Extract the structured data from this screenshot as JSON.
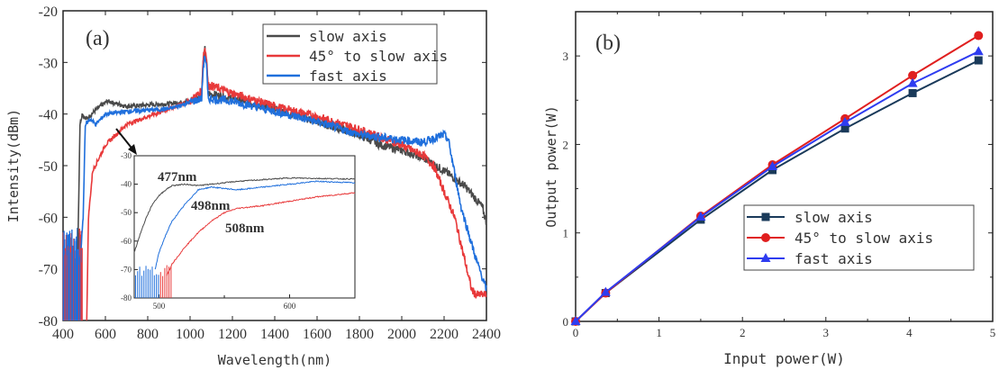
{
  "chart_data": [
    {
      "type": "line",
      "panel_label": "(a)",
      "xlabel": "Wavelength(nm)",
      "ylabel": "Intensity(dBm)",
      "xlim": [
        400,
        2400
      ],
      "ylim": [
        -80,
        -20
      ],
      "xticks": [
        "400",
        "600",
        "800",
        "1000",
        "1200",
        "1400",
        "1600",
        "1800",
        "2000",
        "2200",
        "2400"
      ],
      "yticks": [
        "-80",
        "-70",
        "-60",
        "-50",
        "-40",
        "-30",
        "-20"
      ],
      "legend_position": "top-right",
      "series": [
        {
          "name": "slow axis",
          "color": "#4a4a4a",
          "x": [
            470,
            480,
            490,
            510,
            560,
            610,
            700,
            900,
            1000,
            1055,
            1062,
            1070,
            1078,
            1085,
            1200,
            1400,
            1600,
            1800,
            1900,
            2000,
            2100,
            2200,
            2300,
            2380,
            2400
          ],
          "y": [
            -66,
            -42,
            -40,
            -41,
            -39,
            -37.5,
            -38.5,
            -38,
            -37.5,
            -36,
            -30,
            -27.5,
            -30,
            -36,
            -37,
            -39,
            -41.5,
            -44,
            -46,
            -47,
            -48.5,
            -51,
            -54,
            -58,
            -61
          ]
        },
        {
          "name": "45° to slow axis",
          "color": "#e8393a",
          "x": [
            512,
            520,
            540,
            600,
            700,
            800,
            1000,
            1055,
            1062,
            1070,
            1078,
            1085,
            1100,
            1200,
            1400,
            1600,
            1800,
            2000,
            2100,
            2150,
            2250,
            2330,
            2350,
            2400
          ],
          "y": [
            -80,
            -60,
            -51,
            -46,
            -42,
            -40.5,
            -37.5,
            -35.5,
            -29,
            -27.2,
            -29,
            -34.5,
            -34.5,
            -36,
            -38.5,
            -40.5,
            -43,
            -46,
            -48,
            -50,
            -60,
            -74,
            -75,
            -75
          ]
        },
        {
          "name": "fast axis",
          "color": "#1f6fdc",
          "x": [
            485,
            495,
            505,
            530,
            555,
            600,
            700,
            900,
            1055,
            1062,
            1070,
            1078,
            1085,
            1200,
            1400,
            1600,
            1800,
            2000,
            2100,
            2200,
            2220,
            2280,
            2350,
            2400
          ],
          "y": [
            -66,
            -60,
            -42,
            -41,
            -42,
            -40,
            -39.5,
            -39,
            -37,
            -31,
            -28.5,
            -31,
            -37,
            -37.5,
            -39.5,
            -41.5,
            -44,
            -45,
            -45.5,
            -44,
            -45,
            -58,
            -68,
            -74
          ]
        }
      ],
      "inset": {
        "xlim": [
          481,
          650
        ],
        "ylim": [
          -80,
          -30
        ],
        "xticks": [
          "500",
          "600"
        ],
        "yticks": [
          "-80",
          "-70",
          "-60",
          "-50",
          "-40",
          "-30"
        ],
        "annotations": [
          {
            "text": "477nm",
            "color": "#222222"
          },
          {
            "text": "498nm",
            "color": "#2233cc"
          },
          {
            "text": "508nm",
            "color": "#e8393a"
          }
        ],
        "series": [
          {
            "color": "#4a4a4a",
            "x": [
              481,
              486,
              490,
              495,
              500,
              505,
              510,
              520,
              530,
              540,
              560,
              600,
              650
            ],
            "y": [
              -64,
              -57,
              -52,
              -47,
              -44,
              -42,
              -40.5,
              -40,
              -40.5,
              -40,
              -39,
              -37.8,
              -38.2
            ]
          },
          {
            "color": "#1f6fdc",
            "x": [
              497,
              500,
              505,
              510,
              520,
              530,
              540,
              560,
              580,
              620,
              650
            ],
            "y": [
              -70,
              -64,
              -58,
              -53,
              -47,
              -42,
              -41,
              -42,
              -41,
              -39,
              -39.5
            ]
          },
          {
            "color": "#e8393a",
            "x": [
              506,
              510,
              520,
              530,
              540,
              550,
              560,
              580,
              600,
              620,
              650
            ],
            "y": [
              -72,
              -68,
              -62,
              -57,
              -53,
              -50,
              -48.5,
              -47.5,
              -46,
              -44.5,
              -43
            ]
          }
        ]
      }
    },
    {
      "type": "line",
      "panel_label": "(b)",
      "xlabel": "Input power(W)",
      "ylabel": "Output power(W)",
      "xlim": [
        0,
        5
      ],
      "ylim": [
        0,
        3.5
      ],
      "xticks": [
        "0",
        "1",
        "2",
        "3",
        "4",
        "5"
      ],
      "yticks": [
        "0",
        "1",
        "2",
        "3"
      ],
      "legend_position": "bottom-right",
      "x": [
        0,
        0.36,
        1.5,
        2.36,
        3.23,
        4.04,
        4.83
      ],
      "series": [
        {
          "name": "slow axis",
          "color": "#1a3a5a",
          "marker": "square",
          "values": [
            0,
            0.32,
            1.15,
            1.71,
            2.18,
            2.58,
            2.95
          ]
        },
        {
          "name": " 45° to slow axis",
          "color": "#e01f1f",
          "marker": "circle",
          "values": [
            0,
            0.32,
            1.19,
            1.77,
            2.29,
            2.78,
            3.23
          ]
        },
        {
          "name": " fast axis",
          "color": "#2e3cf0",
          "marker": "triangle",
          "values": [
            0,
            0.33,
            1.18,
            1.75,
            2.25,
            2.69,
            3.05
          ]
        }
      ]
    }
  ]
}
